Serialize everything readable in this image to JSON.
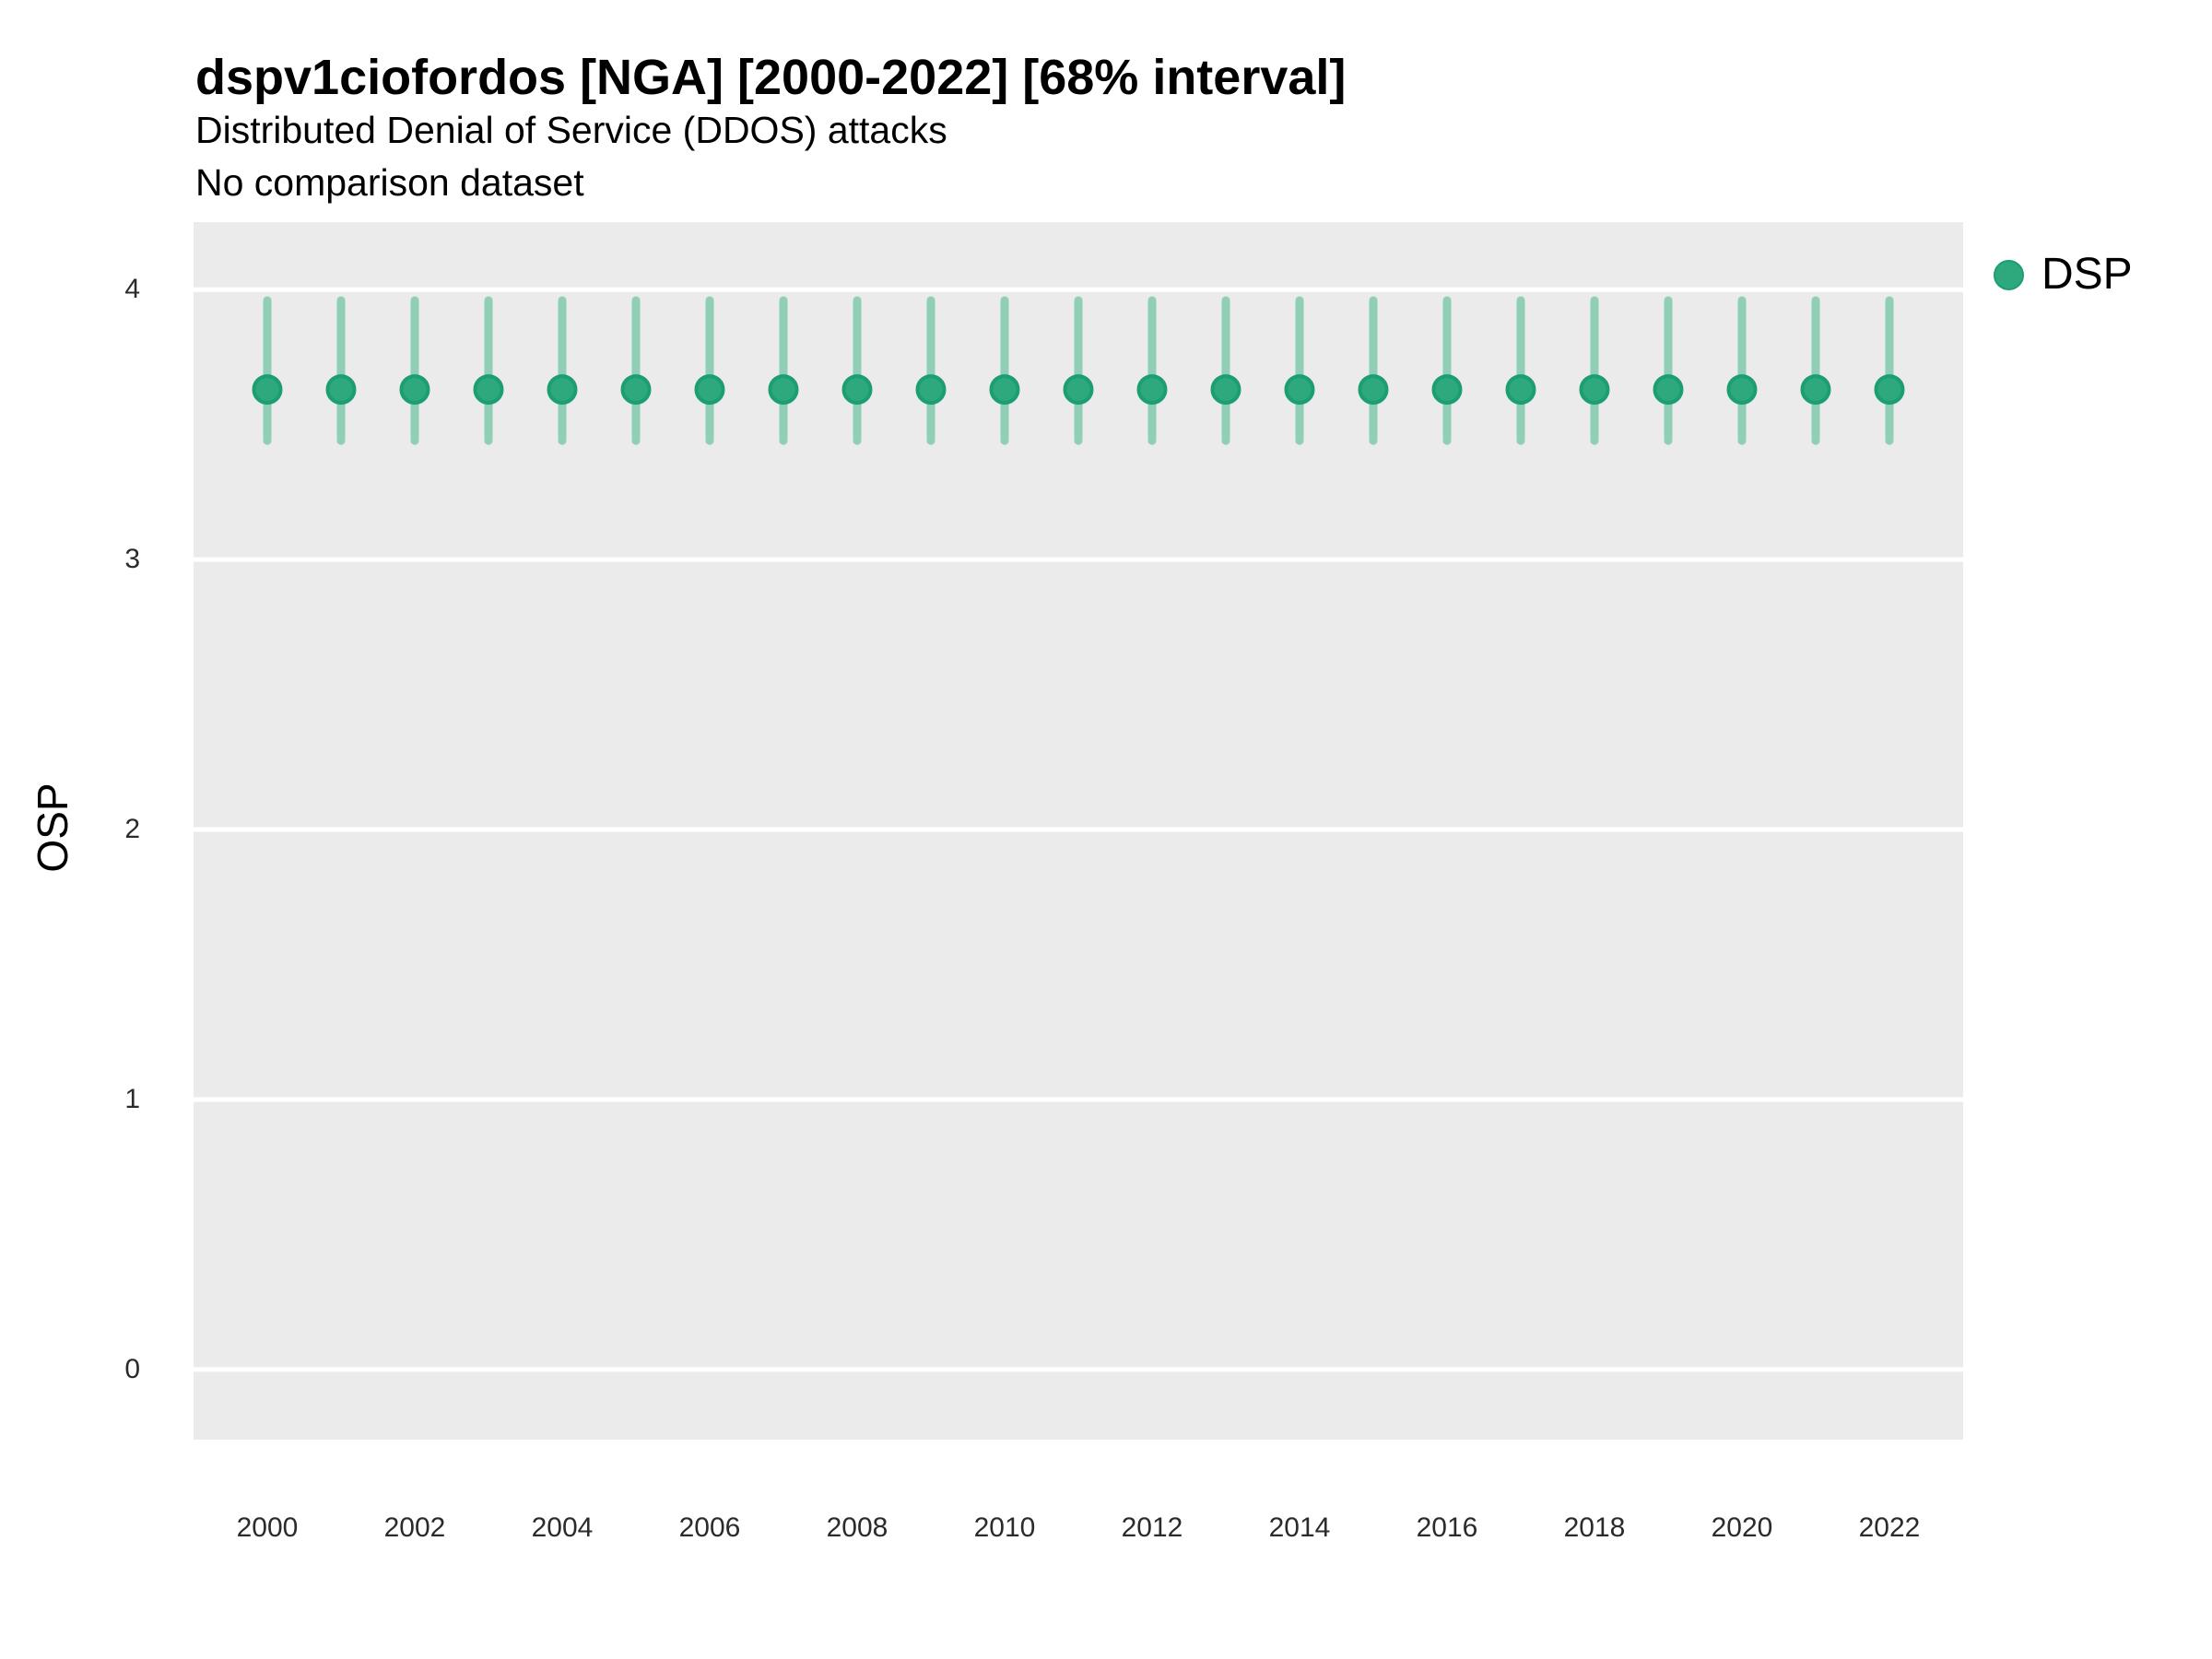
{
  "chart_data": {
    "type": "pointrange",
    "title": "dspv1ciofordos [NGA] [2000-2022] [68% interval]",
    "subtitle": "Distributed Denial of Service (DDOS) attacks",
    "subtitle2": "No comparison dataset",
    "xlabel": "",
    "ylabel": "OSP",
    "legend": {
      "label": "DSP",
      "position": "right-top"
    },
    "x": [
      2000,
      2001,
      2002,
      2003,
      2004,
      2005,
      2006,
      2007,
      2008,
      2009,
      2010,
      2011,
      2012,
      2013,
      2014,
      2015,
      2016,
      2017,
      2018,
      2019,
      2020,
      2021,
      2022
    ],
    "series": [
      {
        "name": "DSP",
        "mean": [
          3.63,
          3.63,
          3.63,
          3.63,
          3.63,
          3.63,
          3.63,
          3.63,
          3.63,
          3.63,
          3.63,
          3.63,
          3.63,
          3.63,
          3.63,
          3.63,
          3.63,
          3.63,
          3.63,
          3.63,
          3.63,
          3.63,
          3.63
        ],
        "lower": [
          3.44,
          3.44,
          3.44,
          3.44,
          3.44,
          3.44,
          3.44,
          3.44,
          3.44,
          3.44,
          3.44,
          3.44,
          3.44,
          3.44,
          3.44,
          3.44,
          3.44,
          3.44,
          3.44,
          3.44,
          3.44,
          3.44,
          3.44
        ],
        "upper": [
          3.96,
          3.96,
          3.96,
          3.96,
          3.96,
          3.96,
          3.96,
          3.96,
          3.96,
          3.96,
          3.96,
          3.96,
          3.96,
          3.96,
          3.96,
          3.96,
          3.96,
          3.96,
          3.96,
          3.96,
          3.96,
          3.96,
          3.96
        ]
      }
    ],
    "ylim": [
      -0.26,
      4.25
    ],
    "y_ticks": [
      0,
      1,
      2,
      3,
      4
    ],
    "x_ticks": [
      2000,
      2002,
      2004,
      2006,
      2008,
      2010,
      2012,
      2014,
      2016,
      2018,
      2020,
      2022
    ],
    "grid": "horizontal-major-only",
    "colors": {
      "point": "#2EA87D",
      "point_stroke": "#1C9E72",
      "interval": "#8FCFB5",
      "panel_bg": "#EBEBEB",
      "grid": "#FFFFFF",
      "tick_text": "#2b2b2b",
      "text": "#000000"
    }
  }
}
